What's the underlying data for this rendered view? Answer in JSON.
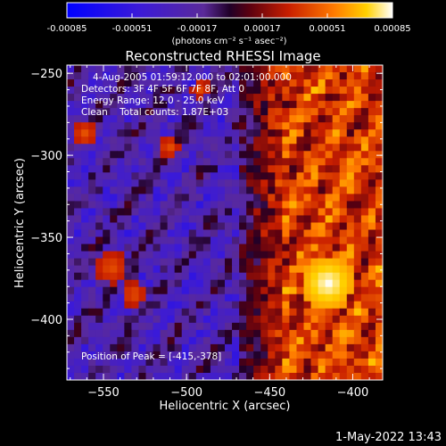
{
  "chart_data": {
    "type": "heatmap",
    "title": "Reconstructed RHESSI Image",
    "xlabel": "Heliocentric X (arcsec)",
    "ylabel": "Heliocentric Y (arcsec)",
    "xlim": [
      -572,
      -382
    ],
    "ylim": [
      -437,
      -245
    ],
    "x_ticks": [
      -550,
      -500,
      -450,
      -400
    ],
    "y_ticks": [
      -250,
      -300,
      -350,
      -400
    ],
    "colorbar": {
      "ticks": [
        "-0.00085",
        "-0.00051",
        "-0.00017",
        "0.00017",
        "0.00051",
        "0.00085"
      ],
      "range": [
        -0.00085,
        0.00085
      ],
      "unit": "(photons cm⁻² s⁻¹ asec⁻²)",
      "colormap": "blue-purple-red-yellow-white"
    },
    "annotations": {
      "time": "4-Aug-2005 01:59:12.000 to 02:01:00.000",
      "detectors": "Detectors: 3F 4F 5F 6F 7F 8F, Att 0",
      "energy": "Energy Range: 12.0 - 25.0 keV",
      "clean": "Clean    Total counts: 1.87E+03",
      "peak": "Position of Peak = [-415,-378]"
    },
    "peak": {
      "x": -415,
      "y": -378
    }
  },
  "footer": {
    "date": "1-May-2022 13:43"
  }
}
